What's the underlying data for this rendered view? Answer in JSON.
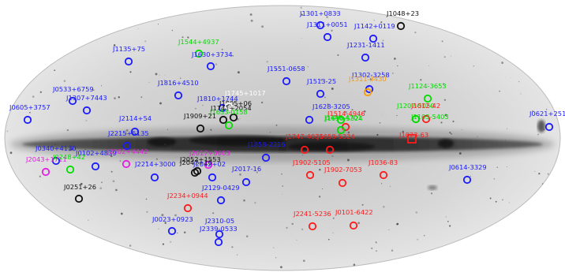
{
  "colors": {
    "blue": "#1a1aff",
    "green": "#00dd00",
    "red": "#ff1a1a",
    "black": "#111111",
    "magenta": "#e020e0",
    "orange": "#ff9900",
    "white": "#ffffff"
  },
  "sources": [
    {
      "label": "J1301+0833",
      "color": "blue"
    },
    {
      "label": "J1048+23",
      "color": "black"
    },
    {
      "label": "J1311+0051",
      "color": "blue"
    },
    {
      "label": "J1142+0119",
      "color": "blue"
    },
    {
      "label": "J1544+4937",
      "color": "green"
    },
    {
      "label": "J1231-1411",
      "color": "blue"
    },
    {
      "label": "J1135+75",
      "color": "blue"
    },
    {
      "label": "J1630+3734",
      "color": "blue"
    },
    {
      "label": "J1551-0658",
      "color": "blue"
    },
    {
      "label": "J1302-3258",
      "color": "blue"
    },
    {
      "label": "J1816+4510",
      "color": "blue"
    },
    {
      "label": "J1513-25",
      "color": "blue"
    },
    {
      "label": "J1124-3653",
      "color": "green"
    },
    {
      "label": "J0533+6759",
      "color": "blue"
    },
    {
      "label": "J1810+1744",
      "color": "blue"
    },
    {
      "label": "J1311-3430",
      "color": "orange"
    },
    {
      "label": "J1307+7443",
      "color": "blue"
    },
    {
      "label": "J1805+06",
      "color": "black"
    },
    {
      "label": "J1658-5324",
      "color": "green"
    },
    {
      "label": "J1207-5050",
      "color": "green"
    },
    {
      "label": "J1012-42",
      "color": "red"
    },
    {
      "label": "J0605+3757",
      "color": "blue"
    },
    {
      "label": "J1628-3205",
      "color": "blue"
    },
    {
      "label": "J1745+1017",
      "color": "white"
    },
    {
      "label": "J1741+2054",
      "color": "black"
    },
    {
      "label": "J1653-0158",
      "color": "green"
    },
    {
      "label": "J1514-4946",
      "color": "red"
    },
    {
      "label": "J0621+2514",
      "color": "blue"
    },
    {
      "label": "J1909+21",
      "color": "black"
    },
    {
      "label": "J1446-4701",
      "color": "green"
    },
    {
      "label": "J1103-5403",
      "color": "green"
    },
    {
      "label": "J2114+54",
      "color": "blue"
    },
    {
      "label": "J1747-4036",
      "color": "red"
    },
    {
      "label": "J1658-5324",
      "color": "red"
    },
    {
      "label": "J1023-63",
      "color": "red"
    },
    {
      "label": "J2215+5135",
      "color": "blue"
    },
    {
      "label": "J1858-2216",
      "color": "blue"
    },
    {
      "label": "J0340+4130",
      "color": "blue"
    },
    {
      "label": "J0102+4839",
      "color": "blue"
    },
    {
      "label": "J2302+4442",
      "color": "magenta"
    },
    {
      "label": "J2043+1711",
      "color": "magenta"
    },
    {
      "label": "J0248+42",
      "color": "green"
    },
    {
      "label": "J2017+0603",
      "color": "magenta"
    },
    {
      "label": "J2052+1553",
      "color": "black"
    },
    {
      "label": "J2047+10",
      "color": "black"
    },
    {
      "label": "J2042+02",
      "color": "blue"
    },
    {
      "label": "J2214+3000",
      "color": "blue"
    },
    {
      "label": "J2017-16",
      "color": "blue"
    },
    {
      "label": "J1902-5105",
      "color": "red"
    },
    {
      "label": "J1902-7053",
      "color": "red"
    },
    {
      "label": "J1036-83",
      "color": "red"
    },
    {
      "label": "J0614-3329",
      "color": "blue"
    },
    {
      "label": "J0251+26",
      "color": "black"
    },
    {
      "label": "J2129-0429",
      "color": "blue"
    },
    {
      "label": "J2234+0944",
      "color": "red"
    },
    {
      "label": "J2241-5236",
      "color": "red"
    },
    {
      "label": "J0101-6422",
      "color": "red"
    },
    {
      "label": "J0023+0923",
      "color": "blue"
    },
    {
      "label": "J2310-05",
      "color": "blue"
    },
    {
      "label": "J2339-0533",
      "color": "blue"
    }
  ]
}
